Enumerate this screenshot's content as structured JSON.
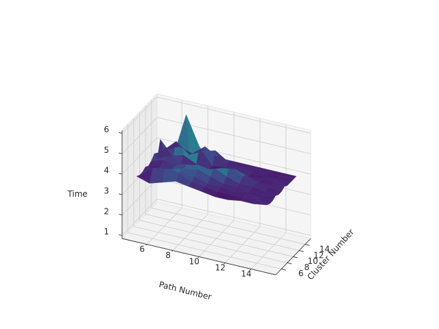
{
  "chart_data": {
    "type": "surface3d",
    "title": "",
    "xlabel": "Path Number",
    "ylabel": "Cluster Number",
    "zlabel": "Time",
    "x_ticks": [
      "6",
      "8",
      "10",
      "12",
      "14"
    ],
    "y_ticks": [
      "6",
      "8",
      "10",
      "12",
      "14"
    ],
    "z_ticks": [
      "1",
      "2",
      "3",
      "4",
      "5",
      "6"
    ],
    "x_values": [
      5,
      6,
      7,
      8,
      9,
      10,
      11,
      12,
      13,
      14,
      15
    ],
    "y_values": [
      5,
      6,
      7,
      8,
      9,
      10,
      11,
      12,
      13,
      14,
      15
    ],
    "z_range": [
      1,
      6
    ],
    "colormap": "viridis",
    "grid": true,
    "z": [
      [
        3.9,
        3.7,
        3.9,
        4.1,
        4.0,
        3.9,
        3.8,
        3.8,
        3.9,
        3.9,
        4.0
      ],
      [
        3.8,
        4.3,
        4.6,
        4.4,
        4.1,
        4.0,
        3.9,
        3.9,
        3.9,
        4.0,
        3.9
      ],
      [
        3.8,
        4.2,
        4.5,
        4.3,
        4.2,
        4.0,
        4.0,
        3.9,
        4.0,
        3.9,
        3.9
      ],
      [
        3.9,
        4.0,
        4.1,
        4.3,
        4.4,
        4.2,
        4.0,
        4.0,
        3.9,
        3.9,
        4.0
      ],
      [
        3.8,
        4.0,
        4.1,
        4.4,
        4.6,
        4.5,
        4.2,
        4.0,
        4.0,
        3.9,
        3.9
      ],
      [
        3.9,
        4.1,
        4.0,
        4.3,
        4.9,
        5.0,
        4.6,
        4.2,
        4.0,
        4.0,
        3.9
      ],
      [
        4.1,
        4.4,
        3.9,
        4.0,
        4.2,
        4.6,
        4.5,
        4.1,
        3.9,
        3.9,
        4.0
      ],
      [
        3.7,
        4.0,
        4.2,
        3.9,
        3.8,
        4.0,
        4.1,
        3.9,
        3.9,
        4.0,
        3.9
      ],
      [
        4.5,
        3.8,
        6.0,
        4.6,
        3.8,
        3.9,
        4.0,
        3.9,
        3.9,
        3.9,
        3.9
      ],
      [
        3.8,
        4.4,
        3.9,
        4.2,
        4.4,
        4.0,
        3.9,
        4.0,
        3.9,
        3.9,
        3.9
      ],
      [
        3.7,
        4.0,
        3.8,
        4.3,
        3.9,
        3.9,
        3.9,
        3.9,
        3.9,
        3.9,
        3.9
      ]
    ]
  }
}
